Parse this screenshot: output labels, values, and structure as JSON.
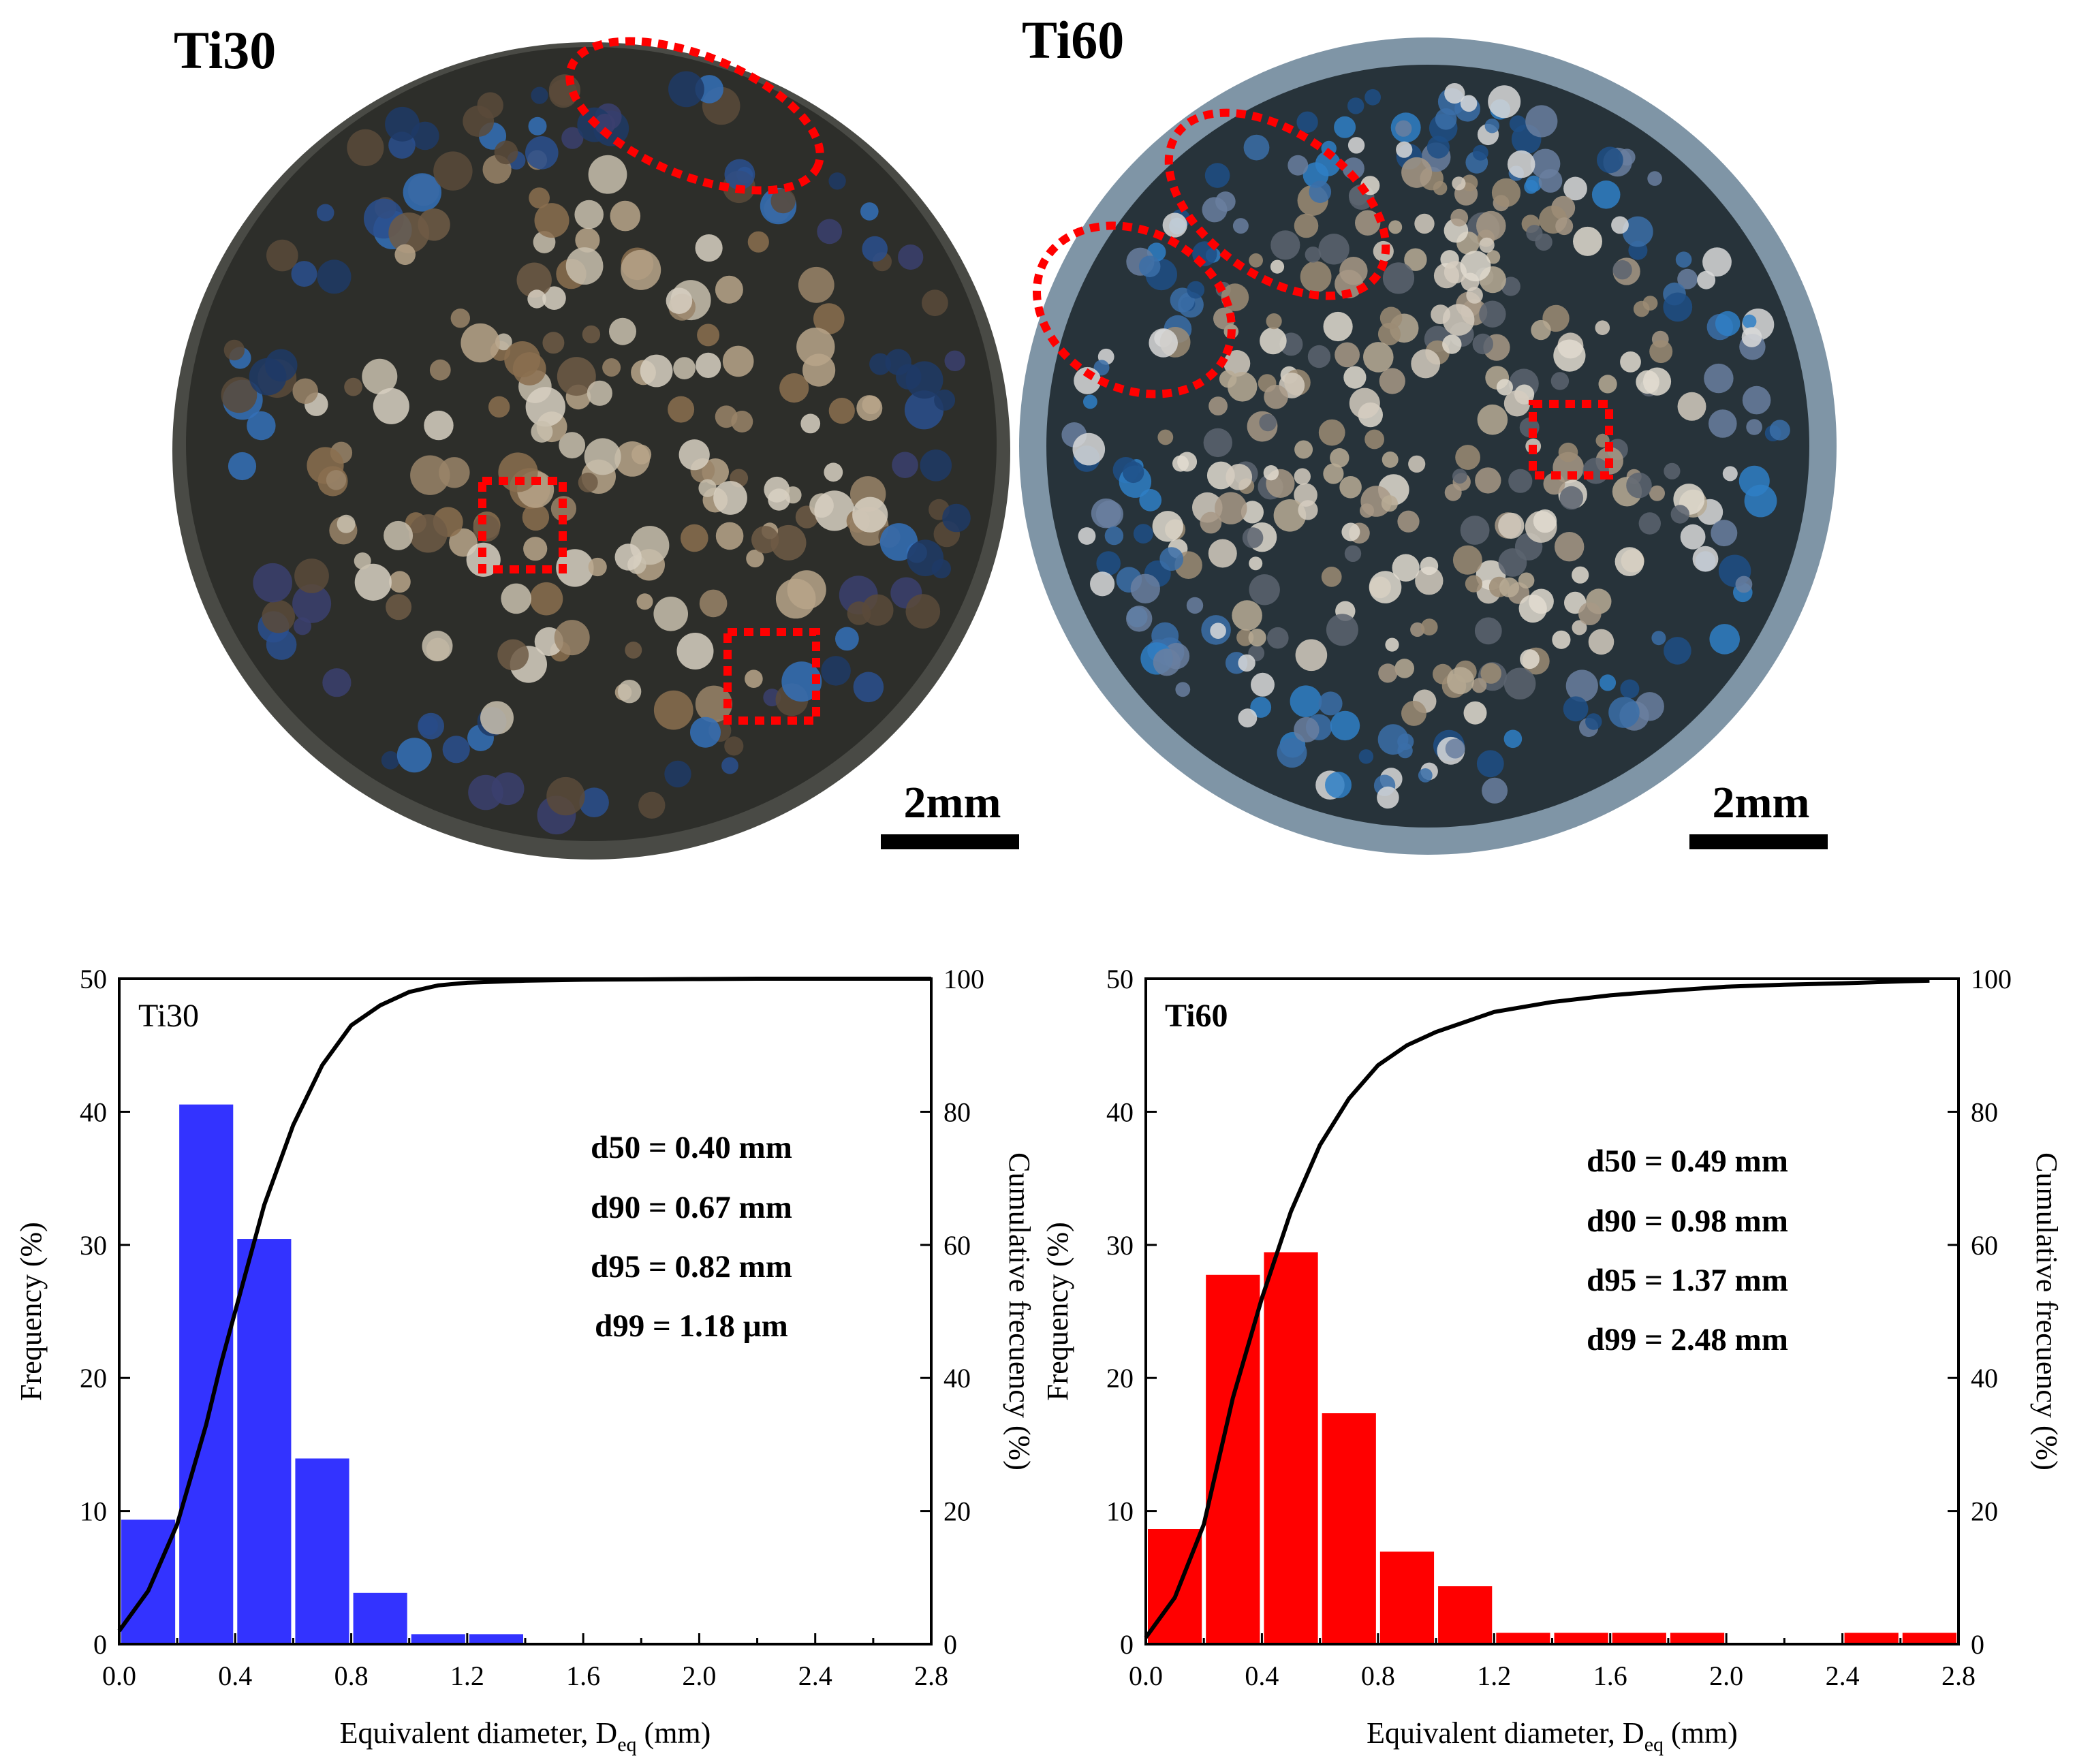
{
  "photos": [
    {
      "label": "Ti30",
      "scale_bar_label": "2mm",
      "disc_color": "#2d2e2a",
      "rim_color": "#494a45"
    },
    {
      "label": "Ti60",
      "scale_bar_label": "2mm",
      "disc_color": "#27333a",
      "rim_color": "#7f95a6"
    }
  ],
  "colors": {
    "ti30_bars": "#3333ff",
    "ti60_bars": "#ff0000",
    "highlight": "#ff0000",
    "curve": "#000000"
  },
  "chart_data": [
    {
      "type": "bar",
      "title": "Ti30",
      "xlabel": "Equivalent diameter, D",
      "xlabel_sub": "eq",
      "xlabel_unit": " (mm)",
      "ylabel": "Frequency (%)",
      "y2label": "Cumulative frecuency (%)",
      "xlim": [
        0,
        2.8
      ],
      "ylim": [
        0,
        50
      ],
      "y2lim": [
        0,
        100
      ],
      "xticks": [
        "0.0",
        "0.4",
        "0.8",
        "1.2",
        "1.6",
        "2.0",
        "2.4",
        "2.8"
      ],
      "xtick_values": [
        0,
        0.4,
        0.8,
        1.2,
        1.6,
        2.0,
        2.4,
        2.8
      ],
      "yticks": [
        "0",
        "10",
        "20",
        "30",
        "40",
        "50"
      ],
      "y2ticks": [
        "0",
        "20",
        "40",
        "60",
        "80",
        "100"
      ],
      "bin_width": 0.2,
      "bin_starts": [
        0.0,
        0.2,
        0.4,
        0.6,
        0.8,
        1.0,
        1.2
      ],
      "values": [
        9.4,
        40.6,
        30.5,
        14.0,
        3.9,
        0.8,
        0.8
      ],
      "cumulative": {
        "x": [
          0.0,
          0.1,
          0.2,
          0.3,
          0.35,
          0.4,
          0.5,
          0.6,
          0.7,
          0.8,
          0.9,
          1.0,
          1.1,
          1.2,
          1.4,
          1.6,
          1.8,
          2.0,
          2.2,
          2.4,
          2.8
        ],
        "y": [
          2,
          8,
          18,
          33,
          42,
          50,
          66,
          78,
          87,
          93,
          96,
          98,
          99,
          99.4,
          99.7,
          99.85,
          99.9,
          99.95,
          100,
          100,
          100
        ]
      },
      "annotations": [
        "d50 = 0.40 mm",
        "d90 = 0.67 mm",
        "d95 = 0.82 mm",
        "d99 = 1.18 µm"
      ]
    },
    {
      "type": "bar",
      "title": "Ti60",
      "xlabel": "Equivalent diameter, D",
      "xlabel_sub": "eq",
      "xlabel_unit": " (mm)",
      "ylabel": "Frequency (%)",
      "y2label": "Cumulative frecuency (%)",
      "xlim": [
        0,
        2.8
      ],
      "ylim": [
        0,
        50
      ],
      "y2lim": [
        0,
        100
      ],
      "xticks": [
        "0.0",
        "0.4",
        "0.8",
        "1.2",
        "1.6",
        "2.0",
        "2.4",
        "2.8"
      ],
      "xtick_values": [
        0,
        0.4,
        0.8,
        1.2,
        1.6,
        2.0,
        2.4,
        2.8
      ],
      "yticks": [
        "0",
        "10",
        "20",
        "30",
        "40",
        "50"
      ],
      "y2ticks": [
        "0",
        "20",
        "40",
        "60",
        "80",
        "100"
      ],
      "bin_width": 0.2,
      "bin_starts": [
        0.0,
        0.2,
        0.4,
        0.6,
        0.8,
        1.0,
        1.2,
        1.4,
        1.6,
        1.8,
        2.4,
        2.6
      ],
      "values": [
        8.7,
        27.8,
        29.5,
        17.4,
        7.0,
        4.4,
        0.9,
        0.9,
        0.9,
        0.9,
        0.9,
        0.9
      ],
      "cumulative": {
        "x": [
          0.0,
          0.1,
          0.2,
          0.3,
          0.4,
          0.5,
          0.6,
          0.7,
          0.8,
          0.9,
          1.0,
          1.2,
          1.4,
          1.6,
          1.8,
          2.0,
          2.2,
          2.4,
          2.6,
          2.7
        ],
        "y": [
          1,
          7,
          18,
          37,
          52,
          65,
          75,
          82,
          87,
          90,
          92,
          95,
          96.5,
          97.5,
          98.2,
          98.8,
          99.1,
          99.3,
          99.6,
          99.7
        ]
      },
      "annotations": [
        "d50 = 0.49 mm",
        "d90 = 0.98 mm",
        "d95 = 1.37 mm",
        "d99 = 2.48 mm"
      ]
    }
  ]
}
